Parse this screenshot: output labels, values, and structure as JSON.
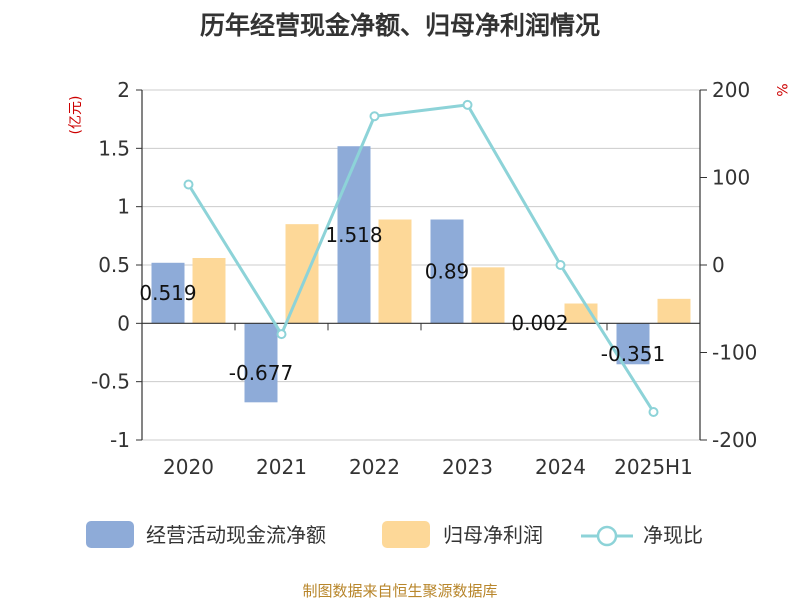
{
  "chart_data": {
    "type": "bar",
    "title": "历年经营现金净额、归母净利润情况",
    "categories": [
      "2020",
      "2021",
      "2022",
      "2023",
      "2024",
      "2025H1"
    ],
    "left_axis": {
      "unit": "(亿元)",
      "ylim": [
        -1,
        2
      ],
      "ticks": [
        "-1",
        "-0.5",
        "0",
        "0.5",
        "1",
        "1.5",
        "2"
      ]
    },
    "right_axis": {
      "unit": "%",
      "ylim": [
        -200,
        200
      ],
      "ticks": [
        "-200",
        "-100",
        "0",
        "100",
        "200"
      ]
    },
    "series": [
      {
        "name": "经营活动现金流净额",
        "type": "bar",
        "axis": "left",
        "values": [
          0.519,
          -0.677,
          1.518,
          0.89,
          0.002,
          -0.351
        ],
        "labels": [
          "0.519",
          "-0.677",
          "1.518",
          "0.89",
          "0.002",
          "-0.351"
        ]
      },
      {
        "name": "归母净利润",
        "type": "bar",
        "axis": "left",
        "values": [
          0.56,
          0.85,
          0.89,
          0.48,
          0.17,
          0.21
        ]
      },
      {
        "name": "净现比",
        "type": "line",
        "axis": "right",
        "values": [
          92,
          -79,
          170,
          183,
          0,
          -168
        ]
      }
    ],
    "grid": true,
    "legend_position": "bottom",
    "colors": {
      "cash": "#8eabd8",
      "profit": "#fdd898",
      "ratio": "#8dd3d8",
      "unit": "#cc0000",
      "source": "#b8862b"
    },
    "source": "制图数据来自恒生聚源数据库"
  }
}
